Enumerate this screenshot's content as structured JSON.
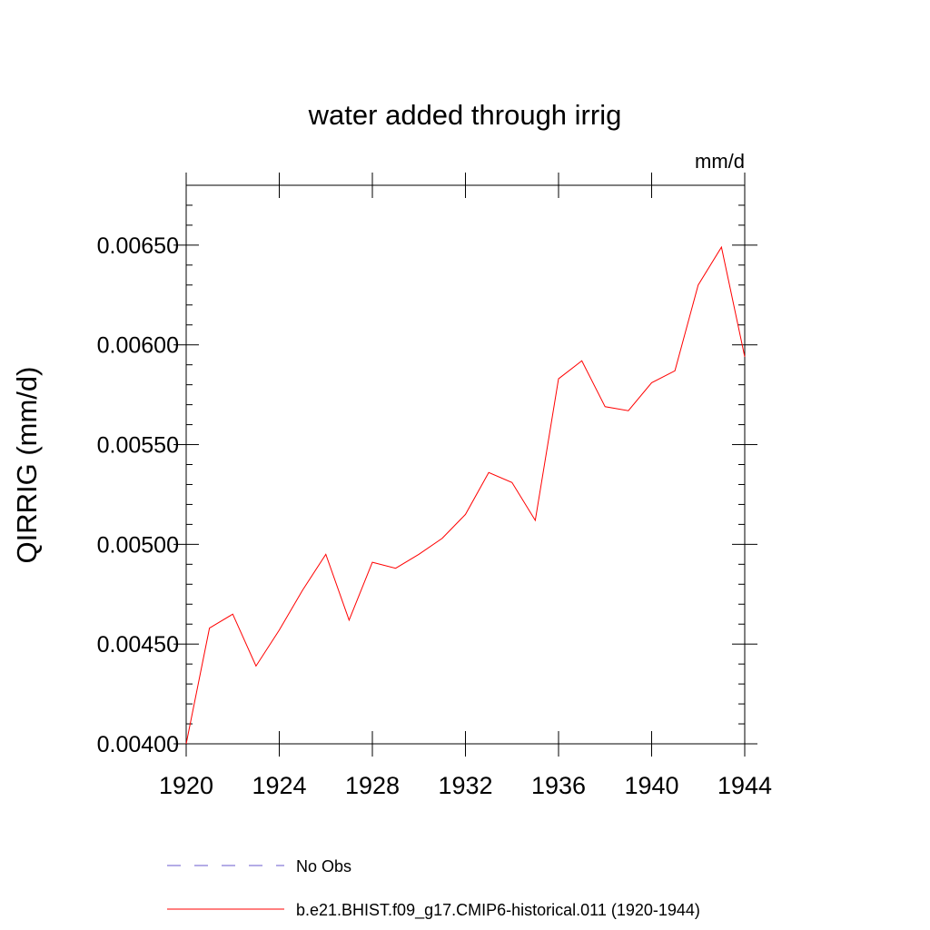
{
  "chart_data": {
    "type": "line",
    "title": "water added through irrig",
    "units_label": "mm/d",
    "ylabel": "QIRRIG  (mm/d)",
    "xlabel": "",
    "xlim": [
      1920,
      1944
    ],
    "ylim": [
      0.004,
      0.0068
    ],
    "x_ticks": [
      1920,
      1924,
      1928,
      1932,
      1936,
      1940,
      1944
    ],
    "x_tick_labels": [
      "1920",
      "1924",
      "1928",
      "1932",
      "1936",
      "1940",
      "1944"
    ],
    "y_ticks": [
      0.004,
      0.0045,
      0.005,
      0.0055,
      0.006,
      0.0065
    ],
    "y_tick_labels": [
      "0.00400",
      "0.00450",
      "0.00500",
      "0.00550",
      "0.00600",
      "0.00650"
    ],
    "grid": false,
    "legend_position": "bottom",
    "series": [
      {
        "name": "No Obs",
        "color": "#6a5acd",
        "dash": "dashed",
        "x": [],
        "y": []
      },
      {
        "name": "b.e21.BHIST.f09_g17.CMIP6-historical.011 (1920-1944)",
        "color": "#ff0000",
        "dash": "solid",
        "x": [
          1920,
          1921,
          1922,
          1923,
          1924,
          1925,
          1926,
          1927,
          1928,
          1929,
          1930,
          1931,
          1932,
          1933,
          1934,
          1935,
          1936,
          1937,
          1938,
          1939,
          1940,
          1941,
          1942,
          1943,
          1944
        ],
        "y": [
          0.004,
          0.00458,
          0.00465,
          0.00439,
          0.00457,
          0.00477,
          0.00495,
          0.00462,
          0.00491,
          0.00488,
          0.00495,
          0.00503,
          0.00515,
          0.00536,
          0.00531,
          0.00512,
          0.00583,
          0.00592,
          0.00569,
          0.00567,
          0.00581,
          0.00587,
          0.0063,
          0.00649,
          0.00594
        ]
      }
    ]
  }
}
